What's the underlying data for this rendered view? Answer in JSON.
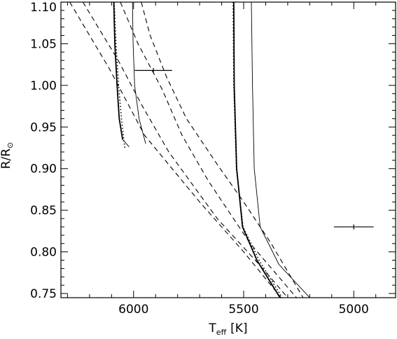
{
  "chart_data": {
    "type": "line",
    "xlabel": {
      "main": "T",
      "sub": "eff",
      "unit": "[K]"
    },
    "ylabel": {
      "main": "R/R",
      "sub": "⊙"
    },
    "xlim": [
      6330,
      4810
    ],
    "ylim": [
      0.745,
      1.1
    ],
    "x_reversed": true,
    "x_ticks": [
      6000,
      5500,
      5000
    ],
    "x_tick_labels": [
      "6000",
      "5500",
      "5000"
    ],
    "y_ticks": [
      0.75,
      0.8,
      0.85,
      0.9,
      0.95,
      1.0,
      1.05,
      1.1
    ],
    "y_tick_labels": [
      "0.75",
      "0.80",
      "0.85",
      "0.90",
      "0.95",
      "1.00",
      "1.05",
      "1.10"
    ],
    "series": [
      {
        "style": "solid-thick",
        "points": [
          [
            6090,
            1.1
          ],
          [
            6085,
            1.05
          ],
          [
            6075,
            1.0
          ],
          [
            6065,
            0.96
          ],
          [
            6050,
            0.935
          ]
        ]
      },
      {
        "style": "dotted",
        "points": [
          [
            6088,
            1.1
          ],
          [
            6080,
            1.05
          ],
          [
            6068,
            1.0
          ],
          [
            6055,
            0.96
          ],
          [
            6040,
            0.925
          ]
        ]
      },
      {
        "style": "solid-thin",
        "points": [
          [
            6005,
            1.1
          ],
          [
            6002,
            1.05
          ],
          [
            5995,
            1.0
          ],
          [
            5975,
            0.96
          ],
          [
            5945,
            0.93
          ]
        ]
      },
      {
        "style": "solid-thick",
        "points": [
          [
            5545,
            1.1
          ],
          [
            5543,
            1.0
          ],
          [
            5532,
            0.9
          ],
          [
            5505,
            0.83
          ],
          [
            5440,
            0.79
          ],
          [
            5335,
            0.745
          ]
        ]
      },
      {
        "style": "dotted",
        "points": [
          [
            5548,
            1.1
          ],
          [
            5545,
            1.0
          ],
          [
            5533,
            0.9
          ],
          [
            5503,
            0.83
          ],
          [
            5430,
            0.79
          ],
          [
            5325,
            0.745
          ]
        ]
      },
      {
        "style": "solid-thin",
        "points": [
          [
            5465,
            1.1
          ],
          [
            5460,
            1.0
          ],
          [
            5452,
            0.9
          ],
          [
            5425,
            0.83
          ],
          [
            5340,
            0.785
          ],
          [
            5200,
            0.745
          ]
        ]
      },
      {
        "style": "dashed",
        "points": [
          [
            6290,
            1.1
          ],
          [
            6110,
            1.02
          ],
          [
            5950,
            0.94
          ],
          [
            5700,
            0.86
          ],
          [
            5500,
            0.8
          ],
          [
            5330,
            0.745
          ]
        ]
      },
      {
        "style": "dashed",
        "points": [
          [
            6230,
            1.1
          ],
          [
            6070,
            1.03
          ],
          [
            5960,
            0.975
          ],
          [
            5840,
            0.92
          ],
          [
            5620,
            0.84
          ],
          [
            5420,
            0.782
          ],
          [
            5300,
            0.745
          ]
        ]
      },
      {
        "style": "dashed",
        "points": [
          [
            6060,
            1.1
          ],
          [
            5980,
            1.05
          ],
          [
            5870,
            0.995
          ],
          [
            5780,
            0.94
          ],
          [
            5660,
            0.885
          ],
          [
            5470,
            0.81
          ],
          [
            5260,
            0.745
          ]
        ]
      },
      {
        "style": "dashed",
        "points": [
          [
            5965,
            1.1
          ],
          [
            5925,
            1.06
          ],
          [
            5850,
            1.01
          ],
          [
            5760,
            0.96
          ],
          [
            5620,
            0.905
          ],
          [
            5500,
            0.86
          ],
          [
            5375,
            0.81
          ],
          [
            5230,
            0.745
          ]
        ]
      },
      {
        "style": "solid-thin",
        "points": [
          [
            6050,
            0.935
          ],
          [
            6020,
            0.926
          ]
        ]
      }
    ],
    "error_bars": [
      {
        "x": 5910,
        "y": 1.018,
        "xerr": 85,
        "yerr": 0.003
      },
      {
        "x": 5000,
        "y": 0.83,
        "xerr": 90,
        "yerr": 0.003
      }
    ]
  }
}
